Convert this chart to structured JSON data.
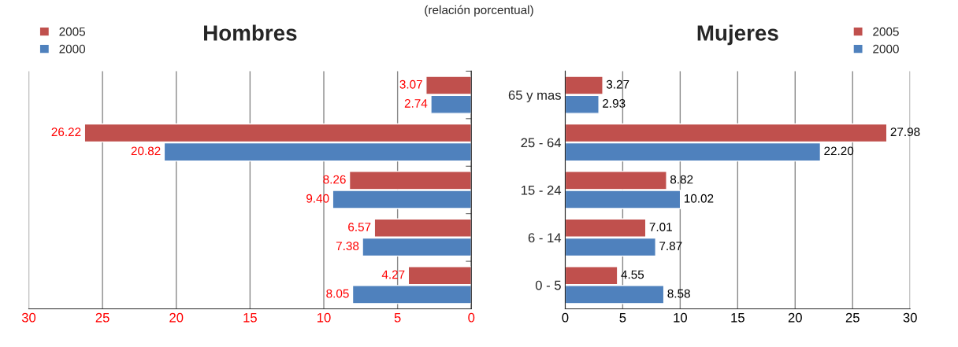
{
  "chart_data": [
    {
      "type": "bar",
      "orientation": "horizontal",
      "title": "Hombres",
      "subtitle": "(relación porcentual)",
      "categories": [
        null,
        null,
        null,
        null,
        null
      ],
      "series": [
        {
          "name": "2005",
          "color": "#c0504d",
          "values": [
            3.07,
            26.22,
            8.26,
            6.57,
            4.27
          ],
          "value_labels": [
            "3.07",
            "26.22",
            "8.26",
            "6.57",
            "4.27"
          ]
        },
        {
          "name": "2000",
          "color": "#4f81bd",
          "values": [
            2.74,
            20.82,
            9.4,
            7.38,
            8.05
          ],
          "value_labels": [
            "2.74",
            "20.82",
            "9.40",
            "7.38",
            "8.05"
          ]
        }
      ],
      "xlim": [
        30,
        0
      ],
      "xticks": [
        30,
        25,
        20,
        15,
        10,
        5,
        0
      ],
      "grid": "x",
      "legend": "top left",
      "tick_labels": "x"
    },
    {
      "type": "bar",
      "orientation": "horizontal",
      "title": "Mujeres",
      "categories": [
        "65 y mas",
        "25 - 64",
        "15 - 24",
        "6 - 14",
        "0 - 5"
      ],
      "series": [
        {
          "name": "2005",
          "color": "#c0504d",
          "values": [
            3.27,
            27.98,
            8.82,
            7.01,
            4.55
          ],
          "value_labels": [
            "3.27",
            "27.98",
            "8.82",
            "7.01",
            "4.55"
          ]
        },
        {
          "name": "2000",
          "color": "#4f81bd",
          "values": [
            2.93,
            22.2,
            10.02,
            7.87,
            8.58
          ],
          "value_labels": [
            "2.93",
            "22.20",
            "10.02",
            "7.87",
            "8.58"
          ]
        }
      ],
      "xlim": [
        0,
        30
      ],
      "xticks": [
        0,
        5,
        10,
        15,
        20,
        25,
        30
      ],
      "grid": "x",
      "legend": "top right"
    }
  ]
}
